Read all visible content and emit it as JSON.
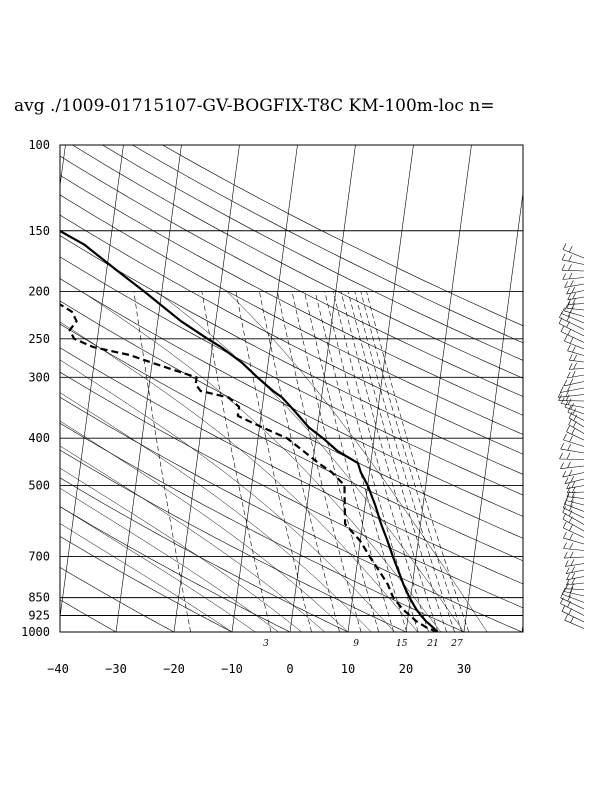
{
  "chart_data": {
    "type": "line",
    "title": "avg ./1009-01715107-GV-BOGFIX-T8C KM-100m-loc n=",
    "xlabel": "",
    "ylabel": "",
    "pressure_levels": [
      100,
      150,
      200,
      250,
      300,
      400,
      500,
      700,
      850,
      925,
      1000
    ],
    "pressure_labels": [
      "100",
      "150",
      "200",
      "250",
      "300",
      "400",
      "500",
      "700",
      "850",
      "925",
      "1000"
    ],
    "temperature_ticks": [
      -40,
      -30,
      -20,
      -10,
      0,
      10,
      20,
      30
    ],
    "temperature_labels": [
      "−40",
      "−30",
      "−20",
      "−10",
      "0",
      "10",
      "20",
      "30"
    ],
    "xlim": [
      -40,
      40
    ],
    "ylim": [
      1000,
      100
    ],
    "y_scale": "log",
    "mixing_ratio_labels": [
      {
        "w": 3,
        "text": "3"
      },
      {
        "w": 9,
        "text": "9"
      },
      {
        "w": 15,
        "text": "15"
      },
      {
        "w": 21,
        "text": "21"
      },
      {
        "w": 27,
        "text": "27"
      }
    ],
    "series": [
      {
        "style": "solid",
        "p": [
          1000,
          980,
          950,
          925,
          900,
          850,
          800,
          750,
          700,
          650,
          600,
          550,
          500,
          470,
          450,
          425,
          400,
          380,
          350,
          330,
          320,
          300,
          280,
          260,
          250,
          230,
          200,
          180,
          160,
          150,
          130,
          120,
          110,
          100
        ],
        "t": [
          25.4,
          24.6,
          23.2,
          22.2,
          21.3,
          19.8,
          18.5,
          17.3,
          16.0,
          14.7,
          13.2,
          11.8,
          10.0,
          8.5,
          7.8,
          4.0,
          1.2,
          -1.5,
          -4.5,
          -6.8,
          -8.5,
          -11.5,
          -14.5,
          -18.5,
          -21.0,
          -26.0,
          -33.0,
          -38.5,
          -44.5,
          -49.0,
          -57.5,
          -61.0,
          -63.0,
          -63.0
        ]
      },
      {
        "style": "dashed",
        "p": [
          1000,
          980,
          950,
          925,
          900,
          850,
          800,
          750,
          700,
          650,
          600,
          550,
          500,
          470,
          450,
          420,
          400,
          380,
          360,
          345,
          330,
          320,
          310,
          300,
          290,
          280,
          270,
          260,
          250,
          240,
          230,
          220,
          210,
          200
        ],
        "t": [
          25.4,
          23.5,
          21.5,
          20.3,
          19.0,
          17.0,
          15.8,
          14.0,
          12.0,
          10.0,
          7.0,
          6.5,
          6.0,
          3.5,
          1.0,
          -2.5,
          -5.0,
          -9.5,
          -14.0,
          -14.0,
          -16.0,
          -21.0,
          -22.0,
          -22.0,
          -26.0,
          -30.0,
          -34.0,
          -40.5,
          -44.0,
          -45.0,
          -44.0,
          -45.0,
          -48.0,
          -54.0
        ]
      }
    ]
  }
}
